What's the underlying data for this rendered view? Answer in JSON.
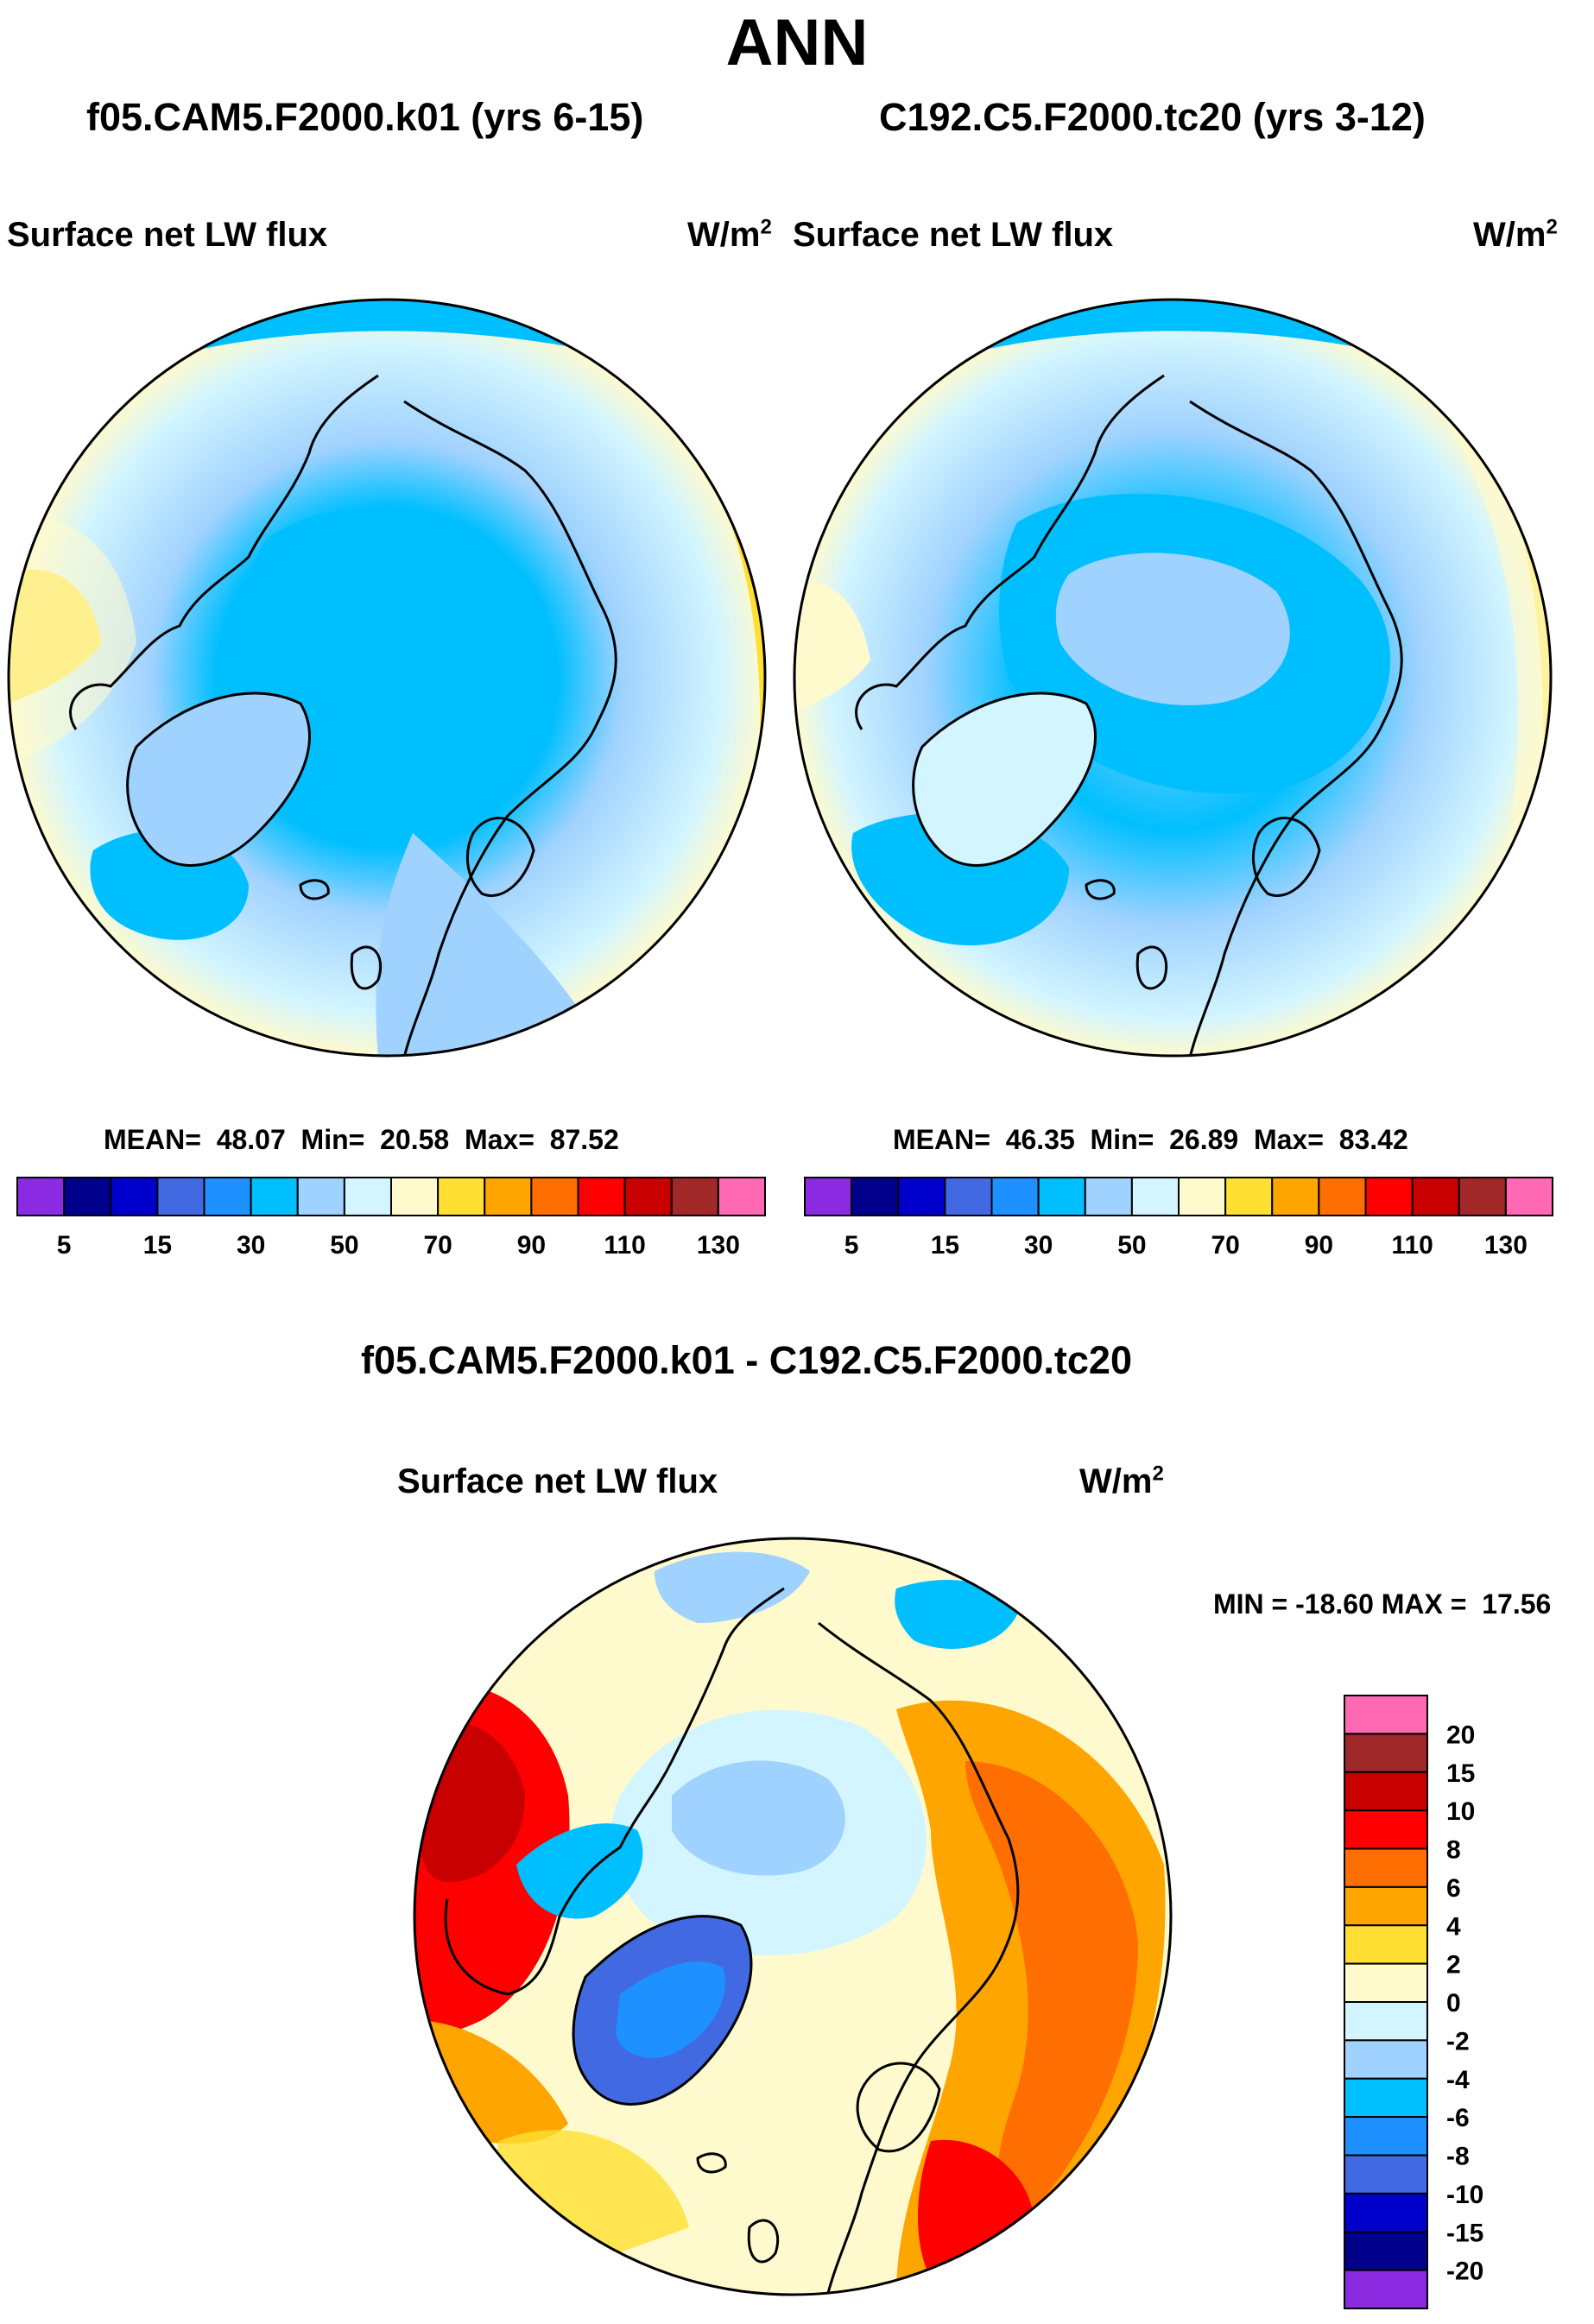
{
  "title": "ANN",
  "panels": [
    {
      "case_title": "f05.CAM5.F2000.k01 (yrs 6-15)",
      "variable": "Surface net LW flux",
      "units_base": "W/m",
      "units_exp": "2",
      "stats": {
        "mean_label": "MEAN=",
        "mean": "48.07",
        "min_label": "Min=",
        "min": "20.58",
        "max_label": "Max=",
        "max": "87.52"
      }
    },
    {
      "case_title": "C192.C5.F2000.tc20 (yrs 3-12)",
      "variable": "Surface net LW flux",
      "units_base": "W/m",
      "units_exp": "2",
      "stats": {
        "mean_label": "MEAN=",
        "mean": "46.35",
        "min_label": "Min=",
        "min": "26.89",
        "max_label": "Max=",
        "max": "83.42"
      }
    }
  ],
  "difference": {
    "title": "f05.CAM5.F2000.k01 - C192.C5.F2000.tc20",
    "variable": "Surface net LW flux",
    "units_base": "W/m",
    "units_exp": "2",
    "minmax_text": "MIN = -18.60 MAX =  17.56"
  },
  "chart_data": [
    {
      "type": "heatmap",
      "projection": "north polar stereographic",
      "title": "Surface net LW flux",
      "units": "W/m2",
      "case": "f05.CAM5.F2000.k01 (yrs 6-15)",
      "mean": 48.07,
      "min": 20.58,
      "max": 87.52,
      "colorbar": {
        "orientation": "horizontal",
        "levels": [
          5,
          10,
          15,
          20,
          30,
          40,
          50,
          60,
          70,
          80,
          90,
          100,
          110,
          120,
          130
        ],
        "tick_labels": [
          "5",
          "15",
          "30",
          "50",
          "70",
          "90",
          "110",
          "130"
        ],
        "colors": [
          "#8a2be2",
          "#00008b",
          "#0000cd",
          "#4169e1",
          "#1e90ff",
          "#00bfff",
          "#a0d2ff",
          "#d2f5ff",
          "#fffacd",
          "#ffe032",
          "#ffa500",
          "#ff6e00",
          "#ff0000",
          "#c80000",
          "#a02828",
          "#ff69b4"
        ]
      }
    },
    {
      "type": "heatmap",
      "projection": "north polar stereographic",
      "title": "Surface net LW flux",
      "units": "W/m2",
      "case": "C192.C5.F2000.tc20 (yrs 3-12)",
      "mean": 46.35,
      "min": 26.89,
      "max": 83.42,
      "colorbar": {
        "orientation": "horizontal",
        "levels": [
          5,
          10,
          15,
          20,
          30,
          40,
          50,
          60,
          70,
          80,
          90,
          100,
          110,
          120,
          130
        ],
        "tick_labels": [
          "5",
          "15",
          "30",
          "50",
          "70",
          "90",
          "110",
          "130"
        ],
        "colors": [
          "#8a2be2",
          "#00008b",
          "#0000cd",
          "#4169e1",
          "#1e90ff",
          "#00bfff",
          "#a0d2ff",
          "#d2f5ff",
          "#fffacd",
          "#ffe032",
          "#ffa500",
          "#ff6e00",
          "#ff0000",
          "#c80000",
          "#a02828",
          "#ff69b4"
        ]
      }
    },
    {
      "type": "heatmap",
      "projection": "north polar stereographic",
      "title": "Surface net LW flux",
      "units": "W/m2",
      "case": "f05.CAM5.F2000.k01 - C192.C5.F2000.tc20",
      "min": -18.6,
      "max": 17.56,
      "colorbar": {
        "orientation": "vertical",
        "levels": [
          -20,
          -15,
          -10,
          -8,
          -6,
          -4,
          -2,
          0,
          2,
          4,
          6,
          8,
          10,
          15,
          20
        ],
        "tick_labels": [
          "20",
          "15",
          "10",
          "8",
          "6",
          "4",
          "2",
          "0",
          "-2",
          "-4",
          "-6",
          "-8",
          "-10",
          "-15",
          "-20"
        ],
        "colors": [
          "#8a2be2",
          "#00008b",
          "#0000cd",
          "#4169e1",
          "#1e90ff",
          "#00bfff",
          "#a0d2ff",
          "#d2f5ff",
          "#fffacd",
          "#ffe032",
          "#ffa500",
          "#ff6e00",
          "#ff0000",
          "#c80000",
          "#a02828",
          "#ff69b4"
        ]
      }
    }
  ]
}
